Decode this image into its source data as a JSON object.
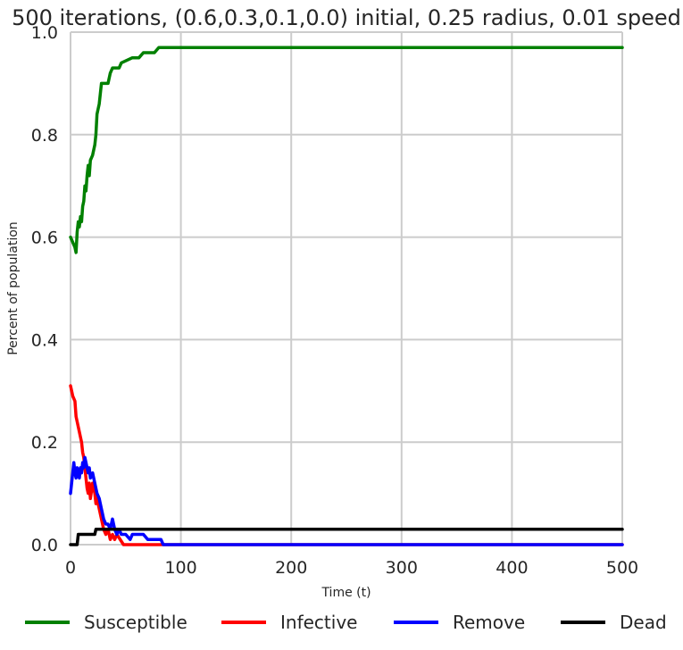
{
  "chart_data": {
    "type": "line",
    "title": "500 iterations, (0.6,0.3,0.1,0.0) initial, 0.25 radius, 0.01 speed",
    "xlabel": "Time (t)",
    "ylabel": "Percent of population",
    "xlim": [
      0,
      500
    ],
    "ylim": [
      0,
      1
    ],
    "xticks": [
      "0",
      "100",
      "200",
      "300",
      "400",
      "500"
    ],
    "yticks": [
      "0.0",
      "0.2",
      "0.4",
      "0.6",
      "0.8",
      "1.0"
    ],
    "grid": true,
    "legend_position": "bottom",
    "series": [
      {
        "name": "Susceptible",
        "color": "#008000",
        "points": [
          [
            0,
            0.6
          ],
          [
            2,
            0.59
          ],
          [
            4,
            0.58
          ],
          [
            5,
            0.57
          ],
          [
            6,
            0.61
          ],
          [
            7,
            0.63
          ],
          [
            8,
            0.62
          ],
          [
            9,
            0.64
          ],
          [
            10,
            0.63
          ],
          [
            11,
            0.66
          ],
          [
            12,
            0.67
          ],
          [
            13,
            0.7
          ],
          [
            14,
            0.69
          ],
          [
            15,
            0.72
          ],
          [
            16,
            0.74
          ],
          [
            17,
            0.72
          ],
          [
            18,
            0.75
          ],
          [
            20,
            0.76
          ],
          [
            22,
            0.78
          ],
          [
            23,
            0.8
          ],
          [
            24,
            0.84
          ],
          [
            26,
            0.86
          ],
          [
            27,
            0.88
          ],
          [
            28,
            0.9
          ],
          [
            30,
            0.9
          ],
          [
            34,
            0.9
          ],
          [
            36,
            0.92
          ],
          [
            38,
            0.93
          ],
          [
            44,
            0.93
          ],
          [
            46,
            0.94
          ],
          [
            56,
            0.95
          ],
          [
            62,
            0.95
          ],
          [
            66,
            0.96
          ],
          [
            76,
            0.96
          ],
          [
            80,
            0.97
          ],
          [
            500,
            0.97
          ]
        ]
      },
      {
        "name": "Infective",
        "color": "#ff0000",
        "points": [
          [
            0,
            0.31
          ],
          [
            1,
            0.3
          ],
          [
            2,
            0.29
          ],
          [
            4,
            0.28
          ],
          [
            5,
            0.25
          ],
          [
            6,
            0.24
          ],
          [
            7,
            0.23
          ],
          [
            8,
            0.22
          ],
          [
            9,
            0.21
          ],
          [
            10,
            0.2
          ],
          [
            11,
            0.18
          ],
          [
            12,
            0.17
          ],
          [
            13,
            0.15
          ],
          [
            14,
            0.13
          ],
          [
            15,
            0.11
          ],
          [
            16,
            0.1
          ],
          [
            17,
            0.12
          ],
          [
            18,
            0.09
          ],
          [
            20,
            0.12
          ],
          [
            22,
            0.1
          ],
          [
            23,
            0.08
          ],
          [
            24,
            0.09
          ],
          [
            26,
            0.07
          ],
          [
            28,
            0.05
          ],
          [
            30,
            0.03
          ],
          [
            32,
            0.02
          ],
          [
            34,
            0.03
          ],
          [
            36,
            0.01
          ],
          [
            38,
            0.02
          ],
          [
            40,
            0.01
          ],
          [
            42,
            0.02
          ],
          [
            45,
            0.01
          ],
          [
            48,
            0.0
          ],
          [
            500,
            0.0
          ]
        ]
      },
      {
        "name": "Remove",
        "color": "#0000ff",
        "points": [
          [
            0,
            0.1
          ],
          [
            1,
            0.12
          ],
          [
            2,
            0.14
          ],
          [
            3,
            0.16
          ],
          [
            4,
            0.14
          ],
          [
            5,
            0.13
          ],
          [
            6,
            0.15
          ],
          [
            7,
            0.14
          ],
          [
            8,
            0.13
          ],
          [
            9,
            0.15
          ],
          [
            10,
            0.14
          ],
          [
            11,
            0.16
          ],
          [
            12,
            0.15
          ],
          [
            13,
            0.17
          ],
          [
            14,
            0.16
          ],
          [
            16,
            0.14
          ],
          [
            17,
            0.15
          ],
          [
            18,
            0.13
          ],
          [
            20,
            0.14
          ],
          [
            22,
            0.12
          ],
          [
            24,
            0.1
          ],
          [
            26,
            0.09
          ],
          [
            28,
            0.07
          ],
          [
            30,
            0.05
          ],
          [
            32,
            0.04
          ],
          [
            34,
            0.04
          ],
          [
            36,
            0.03
          ],
          [
            38,
            0.05
          ],
          [
            40,
            0.03
          ],
          [
            42,
            0.02
          ],
          [
            44,
            0.03
          ],
          [
            46,
            0.02
          ],
          [
            48,
            0.02
          ],
          [
            50,
            0.02
          ],
          [
            54,
            0.01
          ],
          [
            56,
            0.02
          ],
          [
            60,
            0.02
          ],
          [
            66,
            0.02
          ],
          [
            70,
            0.01
          ],
          [
            82,
            0.01
          ],
          [
            84,
            0.0
          ],
          [
            500,
            0.0
          ]
        ]
      },
      {
        "name": "Dead",
        "color": "#000000",
        "points": [
          [
            0,
            0.0
          ],
          [
            6,
            0.0
          ],
          [
            7,
            0.02
          ],
          [
            22,
            0.02
          ],
          [
            23,
            0.03
          ],
          [
            500,
            0.03
          ]
        ]
      }
    ]
  }
}
